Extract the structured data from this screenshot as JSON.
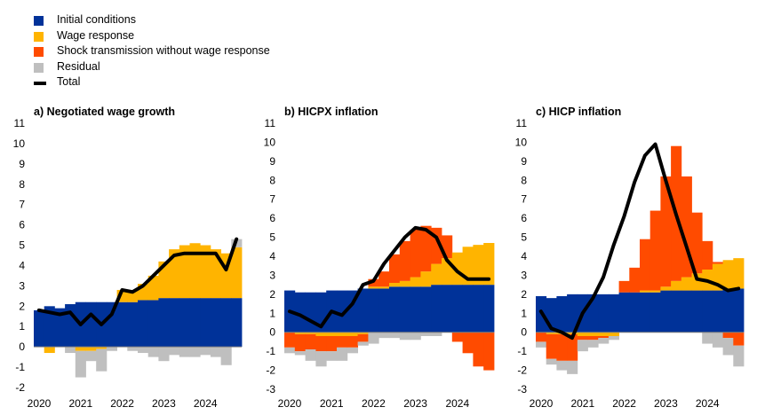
{
  "legend": {
    "initial": "Initial conditions",
    "wage": "Wage response",
    "shock": "Shock transmission without wage response",
    "residual": "Residual",
    "total": "Total"
  },
  "colors": {
    "initial": "#003299",
    "wage": "#FFB400",
    "shock": "#FF4B00",
    "residual": "#BFBFBF",
    "total": "#000000",
    "axis": "#000000"
  },
  "chart_data": [
    {
      "type": "bar",
      "stacked": true,
      "title": "a) Negotiated wage growth",
      "ylim": [
        -2,
        11
      ],
      "yticks": [
        -2,
        -1,
        0,
        1,
        2,
        3,
        4,
        5,
        6,
        7,
        8,
        9,
        10,
        11
      ],
      "xlabels": [
        "2020",
        "2021",
        "2022",
        "2023",
        "2024"
      ],
      "x": [
        "2020Q1",
        "2020Q2",
        "2020Q3",
        "2020Q4",
        "2021Q1",
        "2021Q2",
        "2021Q3",
        "2021Q4",
        "2022Q1",
        "2022Q2",
        "2022Q3",
        "2022Q4",
        "2023Q1",
        "2023Q2",
        "2023Q3",
        "2023Q4",
        "2024Q1",
        "2024Q2",
        "2024Q3",
        "2024Q4"
      ],
      "series": [
        {
          "name": "Initial conditions",
          "values": [
            1.8,
            2.0,
            1.9,
            2.1,
            2.2,
            2.2,
            2.2,
            2.2,
            2.2,
            2.2,
            2.3,
            2.3,
            2.4,
            2.4,
            2.4,
            2.4,
            2.4,
            2.4,
            2.4,
            2.4
          ]
        },
        {
          "name": "Wage response",
          "values": [
            0.0,
            -0.3,
            0.0,
            0.0,
            -0.2,
            -0.2,
            -0.1,
            0.0,
            0.6,
            0.6,
            0.8,
            1.2,
            1.8,
            2.4,
            2.6,
            2.7,
            2.6,
            2.4,
            2.2,
            2.5
          ]
        },
        {
          "name": "Shock transmission without wage response",
          "values": [
            0,
            0,
            0,
            0,
            0,
            0,
            0,
            0,
            0,
            0,
            0,
            0,
            0,
            0,
            0,
            0,
            0,
            0,
            0,
            0
          ]
        },
        {
          "name": "Residual",
          "values": [
            0.0,
            0.0,
            0.0,
            -0.3,
            -1.3,
            -0.5,
            -1.1,
            -0.2,
            0.0,
            -0.2,
            -0.3,
            -0.5,
            -0.7,
            -0.4,
            -0.5,
            -0.5,
            -0.4,
            -0.5,
            -0.9,
            0.4
          ]
        }
      ],
      "total": [
        1.8,
        1.7,
        1.6,
        1.7,
        1.1,
        1.6,
        1.1,
        1.6,
        2.8,
        2.7,
        3.0,
        3.5,
        4.0,
        4.5,
        4.6,
        4.6,
        4.6,
        4.6,
        3.8,
        5.3
      ]
    },
    {
      "type": "bar",
      "stacked": true,
      "title": "b) HICPX inflation",
      "ylim": [
        -3,
        11
      ],
      "yticks": [
        -3,
        -2,
        -1,
        0,
        1,
        2,
        3,
        4,
        5,
        6,
        7,
        8,
        9,
        10,
        11
      ],
      "xlabels": [
        "2020",
        "2021",
        "2022",
        "2023",
        "2024"
      ],
      "x": [
        "2020Q1",
        "2020Q2",
        "2020Q3",
        "2020Q4",
        "2021Q1",
        "2021Q2",
        "2021Q3",
        "2021Q4",
        "2022Q1",
        "2022Q2",
        "2022Q3",
        "2022Q4",
        "2023Q1",
        "2023Q2",
        "2023Q3",
        "2023Q4",
        "2024Q1",
        "2024Q2",
        "2024Q3",
        "2024Q4"
      ],
      "series": [
        {
          "name": "Initial conditions",
          "values": [
            2.2,
            2.1,
            2.1,
            2.1,
            2.2,
            2.2,
            2.2,
            2.3,
            2.3,
            2.3,
            2.4,
            2.4,
            2.4,
            2.4,
            2.5,
            2.5,
            2.5,
            2.5,
            2.5,
            2.5
          ]
        },
        {
          "name": "Wage response",
          "values": [
            0.0,
            -0.1,
            -0.1,
            -0.2,
            -0.2,
            -0.2,
            -0.2,
            -0.1,
            0.1,
            0.1,
            0.2,
            0.3,
            0.5,
            0.8,
            1.1,
            1.4,
            1.7,
            2.0,
            2.1,
            2.2
          ]
        },
        {
          "name": "Shock transmission without wage response",
          "values": [
            -0.8,
            -0.9,
            -0.8,
            -0.8,
            -0.8,
            -0.6,
            -0.6,
            -0.4,
            0.4,
            0.8,
            1.5,
            2.1,
            2.5,
            2.4,
            1.9,
            1.2,
            -0.5,
            -1.1,
            -1.8,
            -2.0
          ]
        },
        {
          "name": "Residual",
          "values": [
            -0.3,
            -0.2,
            -0.6,
            -0.8,
            -0.5,
            -0.7,
            -0.3,
            -0.2,
            -0.6,
            -0.3,
            -0.3,
            -0.4,
            -0.4,
            -0.2,
            -0.2,
            0.0,
            0.0,
            0.0,
            0.0,
            0.0
          ]
        }
      ],
      "total": [
        1.1,
        0.9,
        0.6,
        0.3,
        1.1,
        0.9,
        1.5,
        2.5,
        2.7,
        3.6,
        4.3,
        5.0,
        5.5,
        5.4,
        5.0,
        3.8,
        3.2,
        2.8,
        2.8,
        2.8
      ]
    },
    {
      "type": "bar",
      "stacked": true,
      "title": "c) HICP inflation",
      "ylim": [
        -3,
        11
      ],
      "yticks": [
        -3,
        -2,
        -1,
        0,
        1,
        2,
        3,
        4,
        5,
        6,
        7,
        8,
        9,
        10,
        11
      ],
      "xlabels": [
        "2020",
        "2021",
        "2022",
        "2023",
        "2024"
      ],
      "x": [
        "2020Q1",
        "2020Q2",
        "2020Q3",
        "2020Q4",
        "2021Q1",
        "2021Q2",
        "2021Q3",
        "2021Q4",
        "2022Q1",
        "2022Q2",
        "2022Q3",
        "2022Q4",
        "2023Q1",
        "2023Q2",
        "2023Q3",
        "2023Q4",
        "2024Q1",
        "2024Q2",
        "2024Q3",
        "2024Q4"
      ],
      "series": [
        {
          "name": "Initial conditions",
          "values": [
            1.9,
            1.8,
            1.9,
            2.0,
            2.0,
            2.0,
            2.0,
            2.0,
            2.1,
            2.1,
            2.1,
            2.1,
            2.2,
            2.2,
            2.2,
            2.2,
            2.2,
            2.2,
            2.3,
            2.3
          ]
        },
        {
          "name": "Wage response",
          "values": [
            0.0,
            -0.1,
            -0.1,
            -0.1,
            -0.2,
            -0.2,
            -0.2,
            -0.2,
            0.0,
            0.0,
            0.1,
            0.1,
            0.2,
            0.5,
            0.7,
            0.9,
            1.1,
            1.4,
            1.5,
            1.6
          ]
        },
        {
          "name": "Shock transmission without wage response",
          "values": [
            -0.5,
            -1.3,
            -1.4,
            -1.4,
            -0.2,
            -0.2,
            -0.1,
            0.0,
            0.6,
            1.3,
            2.7,
            4.2,
            5.8,
            7.1,
            5.3,
            3.2,
            1.5,
            0.1,
            -0.3,
            -0.7
          ]
        },
        {
          "name": "Residual",
          "values": [
            -0.3,
            -0.3,
            -0.5,
            -0.7,
            -0.6,
            -0.4,
            -0.3,
            -0.2,
            0.0,
            0.0,
            0.0,
            0.0,
            0.0,
            0.0,
            0.0,
            0.0,
            -0.6,
            -0.8,
            -0.9,
            -1.1
          ]
        }
      ],
      "total": [
        1.1,
        0.2,
        0.0,
        -0.3,
        1.0,
        1.8,
        2.9,
        4.6,
        6.1,
        7.9,
        9.3,
        9.9,
        8.0,
        6.2,
        4.5,
        2.8,
        2.7,
        2.5,
        2.2,
        2.3
      ]
    }
  ]
}
